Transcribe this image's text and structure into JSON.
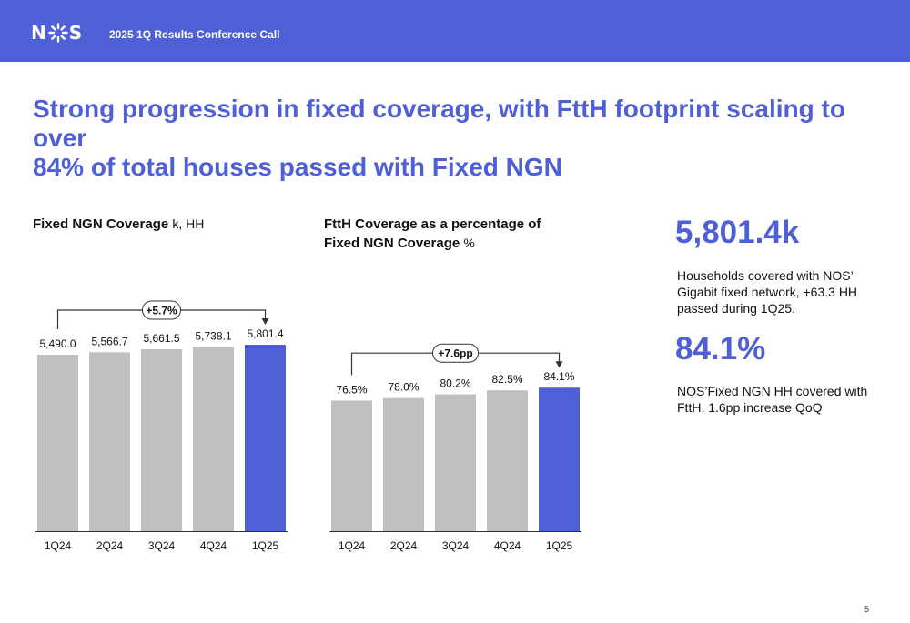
{
  "header": {
    "logo_text_left": "N",
    "logo_text_right": "S",
    "title": "2025 1Q Results Conference Call",
    "bar_color": "#4f5fd6"
  },
  "headline": {
    "line1": "Strong progression in fixed coverage, with FttH footprint scaling to over",
    "line2": "84% of total houses passed with Fixed NGN"
  },
  "chart_left": {
    "title": "Fixed NGN Coverage",
    "unit": "k, HH"
  },
  "chart_right": {
    "title_line1": "FttH Coverage as a percentage of",
    "title_line2": "Fixed NGN Coverage",
    "unit": "%"
  },
  "kpis": [
    {
      "value": "5,801.4k",
      "description": "Households covered with NOS’ Gigabit fixed network, +63.3 HH passed during 1Q25."
    },
    {
      "value": "84.1%",
      "description": "NOS’Fixed NGN HH covered with FttH, 1.6pp increase QoQ"
    }
  ],
  "page_number": "5",
  "chart_data": [
    {
      "type": "bar",
      "title": "Fixed NGN Coverage",
      "ylabel": "k, HH",
      "categories": [
        "1Q24",
        "2Q24",
        "3Q24",
        "4Q24",
        "1Q25"
      ],
      "values": [
        5490.0,
        5566.7,
        5661.5,
        5738.1,
        5801.4
      ],
      "value_labels": [
        "5,490.0",
        "5,566.7",
        "5,661.5",
        "5,738.1",
        "5,801.4"
      ],
      "ylim": [
        0,
        6000
      ],
      "highlight_index": 4,
      "bar_color": "#c0c0c0",
      "highlight_color": "#4f5fd6",
      "growth_annotation": "+5.7%",
      "grid": false
    },
    {
      "type": "bar",
      "title": "FttH Coverage as a percentage of Fixed NGN Coverage",
      "ylabel": "%",
      "categories": [
        "1Q24",
        "2Q24",
        "3Q24",
        "4Q24",
        "1Q25"
      ],
      "values": [
        76.5,
        78.0,
        80.2,
        82.5,
        84.1
      ],
      "value_labels": [
        "76.5%",
        "78.0%",
        "80.2%",
        "82.5%",
        "84.1%"
      ],
      "ylim": [
        0,
        105
      ],
      "highlight_index": 4,
      "bar_color": "#c0c0c0",
      "highlight_color": "#4f5fd6",
      "growth_annotation": "+7.6pp",
      "grid": false
    }
  ]
}
